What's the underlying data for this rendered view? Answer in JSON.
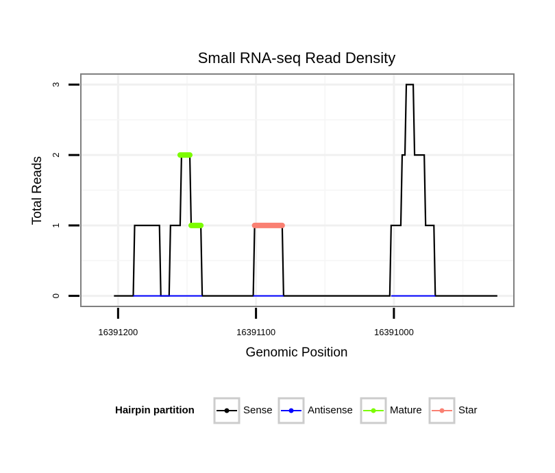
{
  "chart_data": {
    "type": "line",
    "title": "Small RNA-seq Read Density",
    "xlabel": "Genomic Position",
    "ylabel": "Total Reads",
    "x_reversed": true,
    "xlim": [
      16391227,
      16390913
    ],
    "ylim": [
      -0.15,
      3.15
    ],
    "xticks": [
      16391200,
      16391100,
      16391000
    ],
    "xtick_labels": [
      "16391200",
      "16391100",
      "16391000"
    ],
    "yticks": [
      0,
      1,
      2,
      3
    ],
    "ytick_labels": [
      "0",
      "1",
      "2",
      "3"
    ],
    "grid": true,
    "legend": {
      "title": "Hairpin partition",
      "position": "bottom",
      "entries": [
        {
          "name": "Sense",
          "color": "#000000"
        },
        {
          "name": "Antisense",
          "color": "#0000ff"
        },
        {
          "name": "Mature",
          "color": "#7cfc00"
        },
        {
          "name": "Star",
          "color": "#fa8072"
        }
      ]
    },
    "series": [
      {
        "name": "Sense",
        "color": "#000000",
        "x": [
          16391203,
          16391189,
          16391188,
          16391170,
          16391169,
          16391163,
          16391162,
          16391155,
          16391154,
          16391148,
          16391147,
          16391140,
          16391139,
          16391102,
          16391101,
          16391081,
          16391080,
          16391003,
          16391002,
          16390995,
          16390994,
          16390992,
          16390991,
          16390986,
          16390985,
          16390978,
          16390977,
          16390971,
          16390970,
          16390926,
          16390925
        ],
        "y": [
          0,
          0,
          1,
          1,
          0,
          0,
          1,
          1,
          2,
          2,
          1,
          1,
          0,
          0,
          1,
          1,
          0,
          0,
          1,
          1,
          2,
          2,
          3,
          3,
          2,
          2,
          1,
          1,
          0,
          0,
          0
        ]
      },
      {
        "name": "Antisense",
        "color": "#0000ff",
        "x": [
          16391189,
          16391139,
          16391102,
          16391080,
          16391002,
          16390970
        ],
        "y": [
          0,
          0,
          0,
          0,
          0,
          0
        ],
        "segments": [
          [
            16391189,
            16391139
          ],
          [
            16391102,
            16391080
          ],
          [
            16391002,
            16390970
          ]
        ]
      },
      {
        "name": "Mature",
        "color": "#7cfc00",
        "segments": [
          {
            "x": [
              16391155,
              16391148
            ],
            "y": 2
          },
          {
            "x": [
              16391147,
              16391140
            ],
            "y": 1
          }
        ]
      },
      {
        "name": "Star",
        "color": "#fa8072",
        "segments": [
          {
            "x": [
              16391101,
              16391081
            ],
            "y": 1
          }
        ]
      }
    ]
  }
}
